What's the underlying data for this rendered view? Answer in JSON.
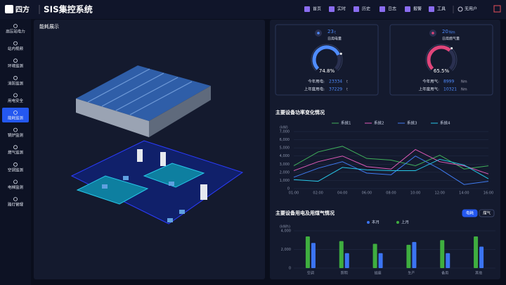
{
  "header": {
    "logo": "四方",
    "title": "SIS集控系统",
    "nav": [
      "首页",
      "实时",
      "历史",
      "日志",
      "报警",
      "工具"
    ],
    "user": "无用户"
  },
  "sidebar": {
    "items": [
      "高压站电力",
      "站内视频",
      "环境监测",
      "消防监测",
      "用电安全",
      "能耗监测",
      "锅炉监测",
      "燃气监测",
      "空调监测",
      "电梯监测",
      "路灯管理"
    ],
    "active": 5
  },
  "panel_left": {
    "title": "能耗展示"
  },
  "gauges": [
    {
      "value_text": "23",
      "unit": "t",
      "name": "日用电量",
      "color": "#4f8cff",
      "percent": {
        "value": 74.8,
        "label": "74.8%"
      },
      "rows": [
        {
          "label": "今年用电:",
          "value": "23334",
          "unit": "t"
        },
        {
          "label": "上年度用电:",
          "value": "37229",
          "unit": "t"
        }
      ]
    },
    {
      "value_text": "20",
      "unit": "Nm",
      "name": "日用燃气量",
      "color": "#e0457a",
      "percent": {
        "value": 65.5,
        "label": "65.5%"
      },
      "rows": [
        {
          "label": "今年用气:",
          "value": "8999",
          "unit": "Nm"
        },
        {
          "label": "上年度用气:",
          "value": "10321",
          "unit": "Nm"
        }
      ]
    }
  ],
  "chart_data": [
    {
      "type": "line",
      "title": "主要设备功率变化情况",
      "y_unit": "(kW)",
      "categories": [
        "01:00",
        "02:00",
        "04:00",
        "06:00",
        "08:00",
        "10:00",
        "12:00",
        "14:00",
        "16:00"
      ],
      "series": [
        {
          "name": "系统1",
          "color": "#3fae5a",
          "values": [
            2800,
            4500,
            5200,
            3700,
            3500,
            2800,
            4100,
            2400,
            2800
          ]
        },
        {
          "name": "系统2",
          "color": "#e05ab8",
          "values": [
            2200,
            3300,
            4000,
            2700,
            2400,
            4800,
            3300,
            2800,
            1800
          ]
        },
        {
          "name": "系统3",
          "color": "#3f7bf0",
          "values": [
            1400,
            2500,
            3300,
            1900,
            1700,
            4000,
            2400,
            500,
            900
          ]
        },
        {
          "name": "系统4",
          "color": "#27c7e8",
          "values": [
            1100,
            900,
            2600,
            2300,
            2200,
            2200,
            3600,
            2900,
            1200
          ]
        }
      ],
      "ylim": [
        0,
        7000
      ],
      "yticks": [
        0,
        {
          "value": 1000,
          "label": "1,000"
        },
        {
          "value": 2000,
          "label": "2,000"
        },
        {
          "value": 3000,
          "label": "3,000"
        },
        {
          "value": 4000,
          "label": "4,000"
        },
        {
          "value": 5000,
          "label": "5,000"
        },
        {
          "value": 6000,
          "label": "6,000"
        },
        {
          "value": 7000,
          "label": "7,000"
        }
      ],
      "grid": true
    },
    {
      "type": "bar",
      "title": "主要设备用电及用煤气情况",
      "y_unit": "(kWh)",
      "toggles": [
        "电耗",
        "煤气"
      ],
      "active_toggle": 0,
      "categories": [
        "空调",
        "照明",
        "插座",
        "生产",
        "备用",
        "其他"
      ],
      "series": [
        {
          "name": "本月",
          "color": "#3b74f2",
          "values": [
            2700,
            1600,
            1600,
            2800,
            1600,
            2300
          ]
        },
        {
          "name": "上月",
          "color": "#3fae3f",
          "values": [
            3400,
            2900,
            2600,
            2500,
            3000,
            3400
          ]
        }
      ],
      "ylim": [
        0,
        4000
      ],
      "yticks": [
        0,
        {
          "value": 2000,
          "label": "2,000"
        },
        {
          "value": 4000,
          "label": "4,000"
        }
      ],
      "grid": true
    }
  ]
}
